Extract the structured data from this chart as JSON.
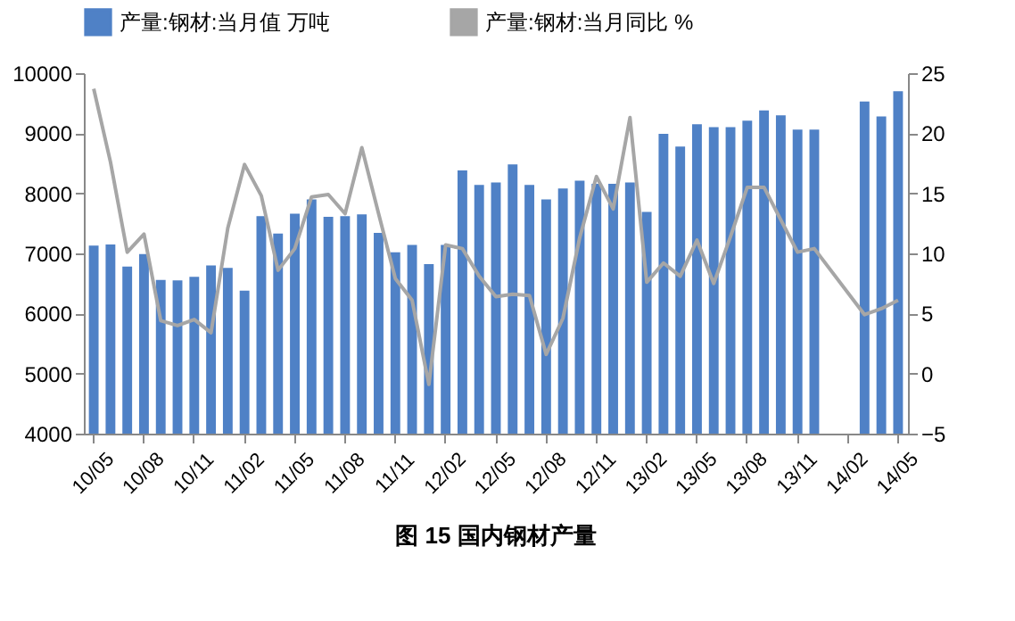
{
  "chart_data": {
    "type": "bar",
    "title": "图 15 国内钢材产量",
    "categories": [
      "10/05",
      null,
      null,
      "10/08",
      null,
      null,
      "10/11",
      null,
      null,
      "11/02",
      null,
      null,
      "11/05",
      null,
      null,
      "11/08",
      null,
      null,
      "11/11",
      null,
      null,
      "12/02",
      null,
      null,
      "12/05",
      null,
      null,
      "12/08",
      null,
      null,
      "12/11",
      null,
      null,
      "13/02",
      null,
      null,
      "13/05",
      null,
      null,
      "13/08",
      null,
      null,
      "13/11",
      null,
      null,
      "14/02",
      null,
      null,
      "14/05"
    ],
    "series": [
      {
        "name": "产量:钢材:当月值  万吨",
        "color": "#4f81c6",
        "values": [
          7130,
          7150,
          6780,
          6990,
          6560,
          6550,
          6610,
          6800,
          6760,
          6380,
          7620,
          7330,
          7660,
          7900,
          7610,
          7620,
          7650,
          7340,
          7020,
          7140,
          6820,
          7140,
          8380,
          8140,
          8180,
          8480,
          8140,
          7900,
          8080,
          8210,
          8160,
          8160,
          8180,
          7690,
          8990,
          8780,
          9150,
          9100,
          9100,
          9210,
          9380,
          9300,
          9060,
          9060,
          null,
          null,
          9530,
          9280,
          9700
        ]
      },
      {
        "name": "产量:钢材:当月同比  %",
        "type": "line",
        "axis": "y2",
        "color": "#a6a6a6",
        "values": [
          23.7,
          17.6,
          10.1,
          11.6,
          4.4,
          4.0,
          4.5,
          3.4,
          12.1,
          17.4,
          14.8,
          8.6,
          10.4,
          14.7,
          14.9,
          13.3,
          18.8,
          13.3,
          7.9,
          6.1,
          -0.9,
          10.7,
          10.4,
          8.1,
          6.4,
          6.6,
          6.5,
          1.6,
          4.6,
          11.3,
          16.4,
          13.7,
          21.3,
          7.6,
          9.2,
          8.1,
          11.1,
          7.5,
          11.4,
          15.5,
          15.5,
          12.8,
          10.1,
          10.4,
          null,
          null,
          4.9,
          5.4,
          6.1
        ]
      }
    ],
    "ylim": [
      4000,
      10000
    ],
    "yticks": [
      4000,
      5000,
      6000,
      7000,
      8000,
      9000,
      10000
    ],
    "y2lim": [
      -5,
      25
    ],
    "y2ticks": [
      -5,
      0,
      5,
      10,
      15,
      20,
      25
    ],
    "legend": "top",
    "grid": false
  }
}
